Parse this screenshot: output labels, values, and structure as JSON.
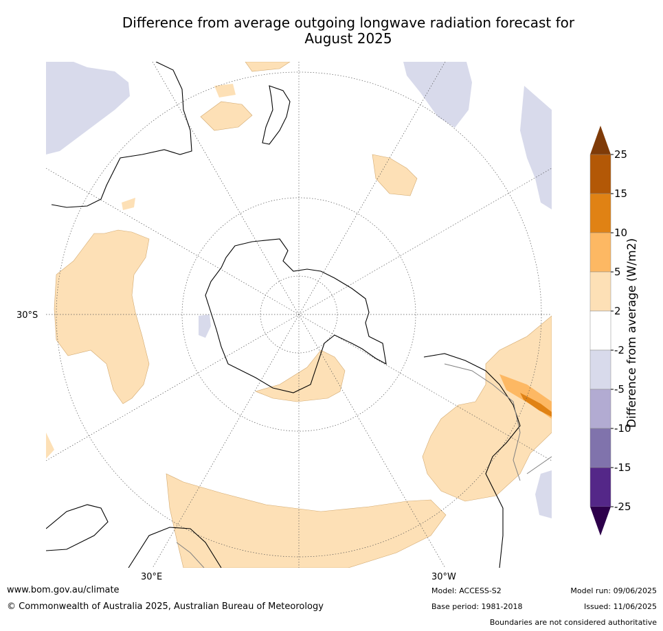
{
  "title_line1": "Difference from average outgoing longwave radiation forecast for",
  "title_line2": "August 2025",
  "map": {
    "lat_label": "30°S",
    "lon_labels": [
      "30°E",
      "30°W"
    ],
    "colors": {
      "land": "#ffffff",
      "warm_light": "#fde0b6",
      "warm_mid": "#fdb863",
      "warm_strong": "#e08214",
      "cool_light": "#d8daeb",
      "coast": "#000000",
      "border": "#808080"
    }
  },
  "colorbar": {
    "label": "Difference from average (W/m2)",
    "ticks": [
      "25",
      "15",
      "10",
      "5",
      "2",
      "-2",
      "-5",
      "-10",
      "-15",
      "-25"
    ],
    "colors": [
      "#7f3b08",
      "#b35806",
      "#e08214",
      "#fdb863",
      "#fde0b6",
      "#ffffff",
      "#d8daeb",
      "#b2abd2",
      "#8073ac",
      "#542788",
      "#2d004b"
    ]
  },
  "footer": {
    "url": "www.bom.gov.au/climate",
    "copyright": "© Commonwealth of Australia 2025, Australian Bureau of Meteorology",
    "model": "Model: ACCESS-S2",
    "base_period": "Base period: 1981-2018",
    "model_run": "Model run: 09/06/2025",
    "issued": "Issued: 11/06/2025",
    "disclaimer": "Boundaries are not considered authoritative"
  }
}
